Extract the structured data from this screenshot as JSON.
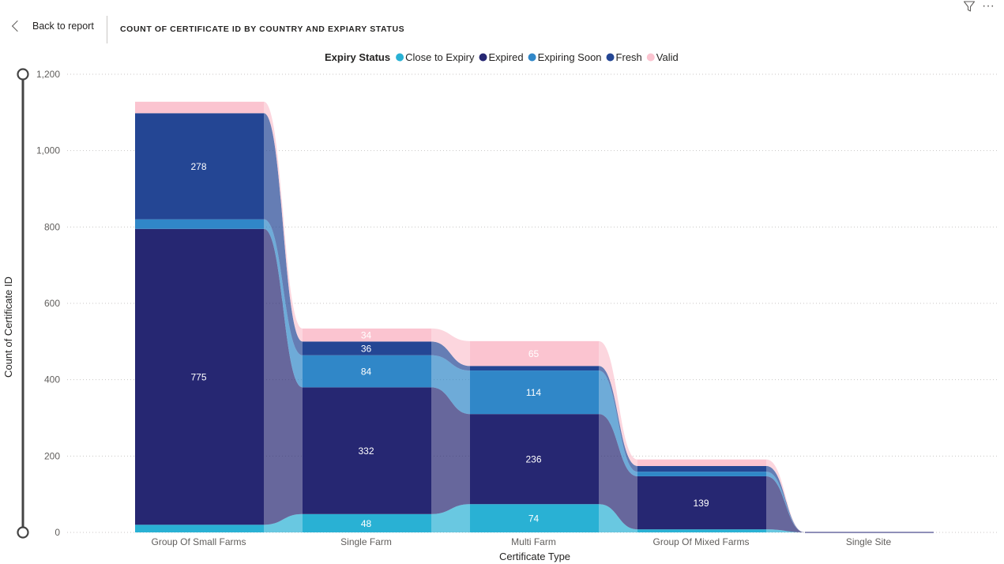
{
  "nav": {
    "back_label": "Back to report"
  },
  "visual_title": "COUNT OF CERTIFICATE ID BY COUNTRY AND EXPIARY STATUS",
  "icons": {
    "filter": "filter-icon",
    "more": "more-options-icon",
    "back": "chevron-left-icon"
  },
  "chart_data": {
    "type": "ribbon",
    "title": "",
    "xlabel": "Certificate Type",
    "ylabel": "Count of Certificate ID",
    "ylim": [
      0,
      1200
    ],
    "yticks": [
      0,
      200,
      400,
      600,
      800,
      1000,
      1200
    ],
    "ytick_labels": [
      "0",
      "200",
      "400",
      "600",
      "800",
      "1,000",
      "1,200"
    ],
    "grid": true,
    "legend_position": "top-center",
    "legend_title": "Expiry Status",
    "categories": [
      "Group Of Small Farms",
      "Single Farm",
      "Multi Farm",
      "Group Of Mixed Farms",
      "Single Site"
    ],
    "series": [
      {
        "name": "Close to Expiry",
        "color": "#29b1d4",
        "values": [
          20,
          48,
          74,
          8,
          0
        ],
        "labels": [
          "",
          "48",
          "74",
          "",
          ""
        ]
      },
      {
        "name": "Expired",
        "color": "#262772",
        "values": [
          775,
          332,
          236,
          139,
          0
        ],
        "labels": [
          "775",
          "332",
          "236",
          "139",
          ""
        ]
      },
      {
        "name": "Expiring Soon",
        "color": "#3087c8",
        "values": [
          25,
          84,
          114,
          12,
          0
        ],
        "labels": [
          "",
          "84",
          "114",
          "",
          ""
        ]
      },
      {
        "name": "Fresh",
        "color": "#244694",
        "values": [
          278,
          36,
          12,
          15,
          0
        ],
        "labels": [
          "278",
          "36",
          "",
          "",
          ""
        ]
      },
      {
        "name": "Valid",
        "color": "#fbc4d0",
        "values": [
          30,
          34,
          65,
          17,
          0
        ],
        "labels": [
          "",
          "34",
          "65",
          "",
          ""
        ]
      }
    ]
  }
}
